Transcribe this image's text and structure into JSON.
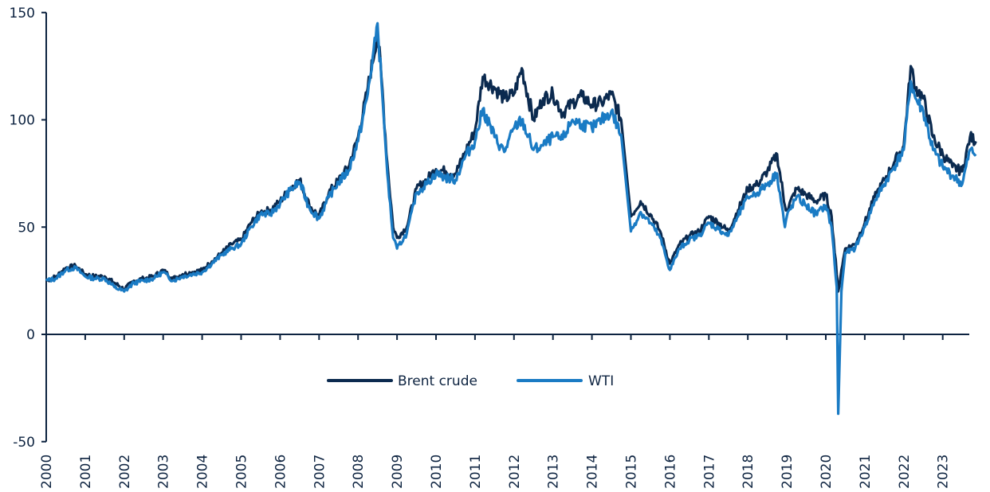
{
  "chart_data": {
    "type": "line",
    "title": "",
    "xlabel": "",
    "ylabel": "",
    "ylim": [
      -50,
      150
    ],
    "xlim": [
      2000,
      2023.85
    ],
    "grid": false,
    "legend_position": "inside-bottom-center",
    "y_ticks": [
      150,
      100,
      50,
      0,
      -50
    ],
    "x_ticks": [
      "2000",
      "2001",
      "2002",
      "2003",
      "2004",
      "2005",
      "2006",
      "2007",
      "2008",
      "2009",
      "2010",
      "2011",
      "2012",
      "2013",
      "2014",
      "2015",
      "2016",
      "2017",
      "2018",
      "2019",
      "2020",
      "2021",
      "2022",
      "2023"
    ],
    "colors": {
      "brent": "#0b2a4f",
      "wti": "#1a7bc4",
      "axis": "#0d2340"
    },
    "x": [
      2000.0,
      2000.25,
      2000.5,
      2000.75,
      2001.0,
      2001.25,
      2001.5,
      2001.75,
      2002.0,
      2002.25,
      2002.5,
      2002.75,
      2003.0,
      2003.25,
      2003.5,
      2003.75,
      2004.0,
      2004.25,
      2004.5,
      2004.75,
      2005.0,
      2005.25,
      2005.5,
      2005.75,
      2006.0,
      2006.25,
      2006.5,
      2006.75,
      2007.0,
      2007.25,
      2007.5,
      2007.75,
      2008.0,
      2008.25,
      2008.5,
      2008.6,
      2008.75,
      2008.9,
      2009.0,
      2009.25,
      2009.5,
      2009.75,
      2010.0,
      2010.25,
      2010.5,
      2010.75,
      2011.0,
      2011.2,
      2011.5,
      2011.75,
      2012.0,
      2012.2,
      2012.5,
      2012.75,
      2013.0,
      2013.25,
      2013.5,
      2013.75,
      2014.0,
      2014.25,
      2014.5,
      2014.75,
      2015.0,
      2015.25,
      2015.5,
      2015.75,
      2016.0,
      2016.25,
      2016.5,
      2016.75,
      2017.0,
      2017.25,
      2017.5,
      2017.75,
      2018.0,
      2018.25,
      2018.5,
      2018.75,
      2018.95,
      2019.0,
      2019.25,
      2019.5,
      2019.75,
      2020.0,
      2020.15,
      2020.28,
      2020.32,
      2020.4,
      2020.5,
      2020.75,
      2021.0,
      2021.25,
      2021.5,
      2021.75,
      2022.0,
      2022.18,
      2022.3,
      2022.5,
      2022.75,
      2023.0,
      2023.25,
      2023.5,
      2023.7,
      2023.85
    ],
    "series": [
      {
        "name": "Brent crude",
        "values": [
          25,
          27,
          31,
          32,
          28,
          27,
          27,
          24,
          21,
          25,
          26,
          27,
          30,
          26,
          28,
          29,
          30,
          34,
          38,
          42,
          44,
          52,
          57,
          58,
          62,
          68,
          72,
          60,
          55,
          66,
          72,
          78,
          92,
          115,
          140,
          120,
          80,
          50,
          45,
          50,
          68,
          72,
          77,
          76,
          75,
          85,
          95,
          120,
          115,
          110,
          112,
          124,
          100,
          110,
          112,
          103,
          108,
          111,
          107,
          108,
          112,
          100,
          55,
          62,
          56,
          48,
          33,
          42,
          46,
          48,
          55,
          52,
          48,
          58,
          68,
          70,
          76,
          84,
          60,
          58,
          68,
          65,
          62,
          65,
          55,
          28,
          20,
          30,
          40,
          42,
          52,
          64,
          72,
          80,
          88,
          125,
          115,
          110,
          92,
          84,
          78,
          76,
          92,
          90
        ]
      },
      {
        "name": "WTI",
        "values": [
          25,
          26,
          30,
          31,
          27,
          26,
          26,
          22,
          20,
          24,
          25,
          26,
          29,
          25,
          27,
          28,
          29,
          33,
          37,
          40,
          42,
          50,
          56,
          56,
          61,
          67,
          71,
          59,
          54,
          64,
          71,
          76,
          90,
          112,
          145,
          118,
          75,
          45,
          40,
          47,
          66,
          70,
          75,
          73,
          72,
          83,
          90,
          105,
          92,
          85,
          96,
          100,
          86,
          88,
          92,
          91,
          100,
          98,
          96,
          100,
          104,
          93,
          48,
          57,
          52,
          45,
          30,
          40,
          44,
          46,
          52,
          49,
          46,
          55,
          64,
          66,
          70,
          75,
          50,
          55,
          64,
          60,
          56,
          60,
          50,
          22,
          -37,
          20,
          38,
          40,
          50,
          62,
          70,
          78,
          86,
          118,
          110,
          104,
          86,
          78,
          74,
          70,
          86,
          84
        ]
      }
    ],
    "legend": [
      {
        "label": "Brent crude",
        "color": "#0b2a4f"
      },
      {
        "label": "WTI",
        "color": "#1a7bc4"
      }
    ]
  },
  "axis": {
    "y_labels": [
      "150",
      "100",
      "50",
      "0",
      "-50"
    ],
    "x_labels": [
      "2000",
      "2001",
      "2002",
      "2003",
      "2004",
      "2005",
      "2006",
      "2007",
      "2008",
      "2009",
      "2010",
      "2011",
      "2012",
      "2013",
      "2014",
      "2015",
      "2016",
      "2017",
      "2018",
      "2019",
      "2020",
      "2021",
      "2022",
      "2023"
    ]
  },
  "legend": {
    "brent_label": "Brent crude",
    "wti_label": "WTI"
  }
}
